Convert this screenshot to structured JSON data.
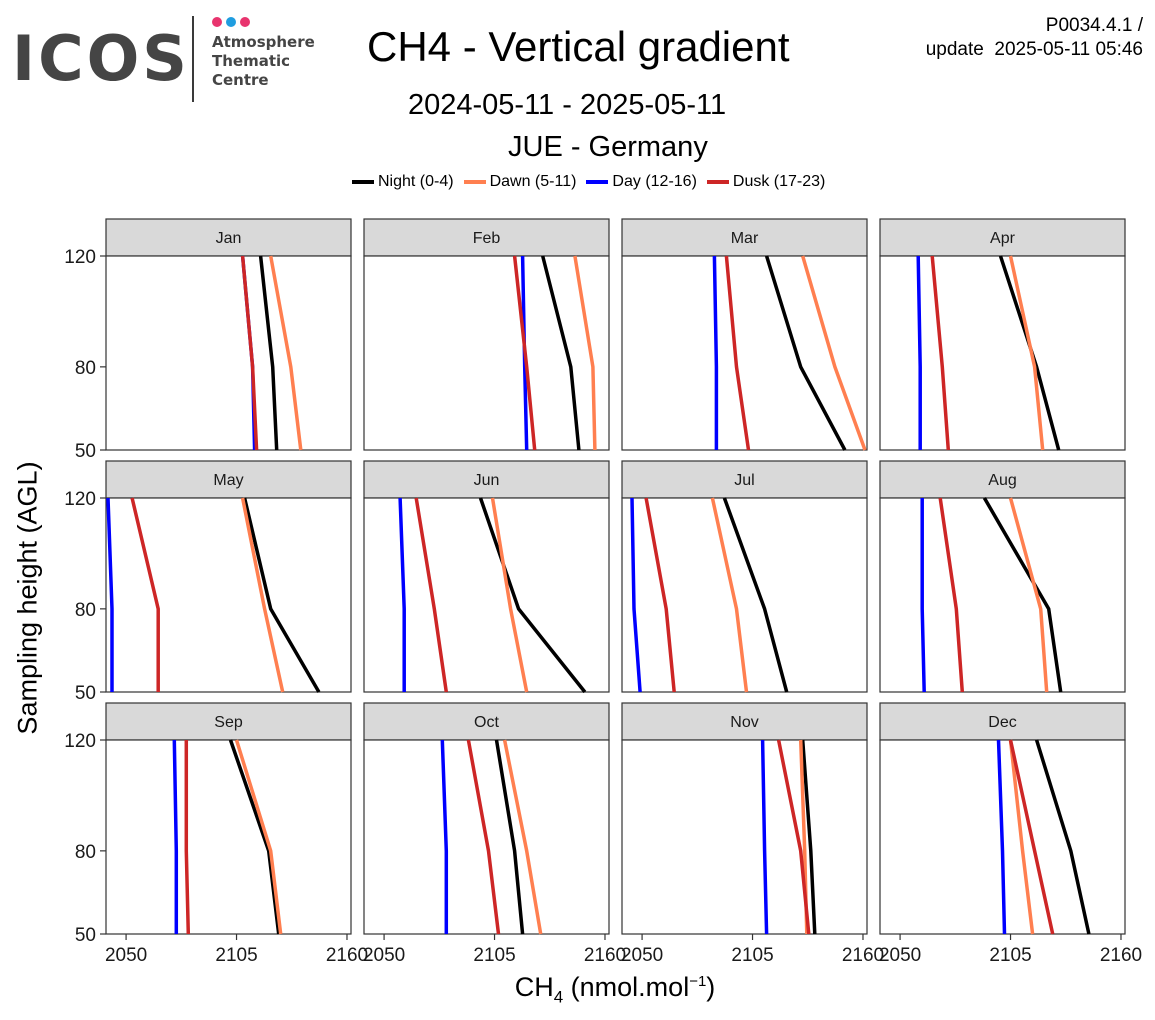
{
  "logo": {
    "word": "ICOS",
    "lines": [
      "Atmosphere",
      "Thematic",
      "Centre"
    ],
    "dot_colors": [
      "#e8346e",
      "#1f9de0",
      "#e8346e"
    ]
  },
  "header": {
    "title": "CH4 - Vertical gradient",
    "dates": "2024-05-11 - 2025-05-11",
    "station": "JUE - Germany",
    "version": "P0034.4.1 /",
    "update": "update  2025-05-11 05:46"
  },
  "legend": [
    {
      "label": "Night (0-4)",
      "color": "#000000"
    },
    {
      "label": "Dawn (5-11)",
      "color": "#ff7f50"
    },
    {
      "label": "Day (12-16)",
      "color": "#0000ff"
    },
    {
      "label": "Dusk (17-23)",
      "color": "#cd2626"
    }
  ],
  "chart_data": {
    "type": "line",
    "title": "CH4 - Vertical gradient",
    "xlabel": "CH4 (nmol.mol-1)",
    "xlabel_parts": {
      "base": "CH",
      "sub": "4",
      "unit_open": " (nmol.mol",
      "sup": "−1",
      "unit_close": ")"
    },
    "ylabel": "Sampling height (AGL)",
    "xlim": [
      2040,
      2162
    ],
    "ylim": [
      50,
      120
    ],
    "x_ticks": [
      2050,
      2105,
      2160
    ],
    "y_ticks": [
      50,
      80,
      120
    ],
    "heights": [
      50,
      80,
      120
    ],
    "series_names": [
      "Night (0-4)",
      "Dawn (5-11)",
      "Day (12-16)",
      "Dusk (17-23)"
    ],
    "series_colors": [
      "#000000",
      "#ff7f50",
      "#0000ff",
      "#cd2626"
    ],
    "panels": [
      {
        "month": "Jan",
        "series": [
          [
            2125,
            2123,
            2117
          ],
          [
            2137,
            2132,
            2122
          ],
          [
            2114,
            2113,
            2108
          ],
          [
            2115,
            2113,
            2108
          ]
        ]
      },
      {
        "month": "Feb",
        "series": [
          [
            2147,
            2143,
            2129
          ],
          [
            2155,
            2154,
            2145
          ],
          [
            2121,
            2120,
            2119
          ],
          [
            2125,
            2121,
            2115
          ]
        ]
      },
      {
        "month": "Mar",
        "series": [
          [
            2151,
            2129,
            2112
          ],
          [
            2161,
            2146,
            2130
          ],
          [
            2087,
            2087,
            2086
          ],
          [
            2103,
            2097,
            2092
          ]
        ]
      },
      {
        "month": "Apr",
        "series": [
          [
            2129,
            2118,
            2100
          ],
          [
            2121,
            2117,
            2105
          ],
          [
            2060,
            2060,
            2059
          ],
          [
            2074,
            2071,
            2066
          ]
        ]
      },
      {
        "month": "May",
        "series": [
          [
            2146,
            2122,
            2109
          ],
          [
            2128,
            2119,
            2108
          ],
          [
            2043,
            2043,
            2041
          ],
          [
            2066,
            2066,
            2053
          ]
        ]
      },
      {
        "month": "Jun",
        "series": [
          [
            2150,
            2117,
            2098
          ],
          [
            2121,
            2113,
            2104
          ],
          [
            2060,
            2060,
            2058
          ],
          [
            2081,
            2075,
            2066
          ]
        ]
      },
      {
        "month": "Jul",
        "series": [
          [
            2122,
            2111,
            2091
          ],
          [
            2102,
            2097,
            2085
          ],
          [
            2049,
            2046,
            2045
          ],
          [
            2066,
            2062,
            2052
          ]
        ]
      },
      {
        "month": "Aug",
        "series": [
          [
            2130,
            2124,
            2092
          ],
          [
            2123,
            2120,
            2105
          ],
          [
            2062,
            2061,
            2061
          ],
          [
            2081,
            2078,
            2070
          ]
        ]
      },
      {
        "month": "Sep",
        "series": [
          [
            2126,
            2121,
            2102
          ],
          [
            2127,
            2122,
            2105
          ],
          [
            2075,
            2075,
            2074
          ],
          [
            2081,
            2080,
            2080
          ]
        ]
      },
      {
        "month": "Oct",
        "series": [
          [
            2119,
            2115,
            2106
          ],
          [
            2128,
            2121,
            2110
          ],
          [
            2081,
            2081,
            2079
          ],
          [
            2107,
            2102,
            2092
          ]
        ]
      },
      {
        "month": "Nov",
        "series": [
          [
            2136,
            2134,
            2130
          ],
          [
            2132,
            2131,
            2129
          ],
          [
            2112,
            2111,
            2110
          ],
          [
            2133,
            2129,
            2118
          ]
        ]
      },
      {
        "month": "Dec",
        "series": [
          [
            2144,
            2135,
            2118
          ],
          [
            2116,
            2111,
            2105
          ],
          [
            2102,
            2101,
            2099
          ],
          [
            2126,
            2117,
            2105
          ]
        ]
      }
    ]
  }
}
